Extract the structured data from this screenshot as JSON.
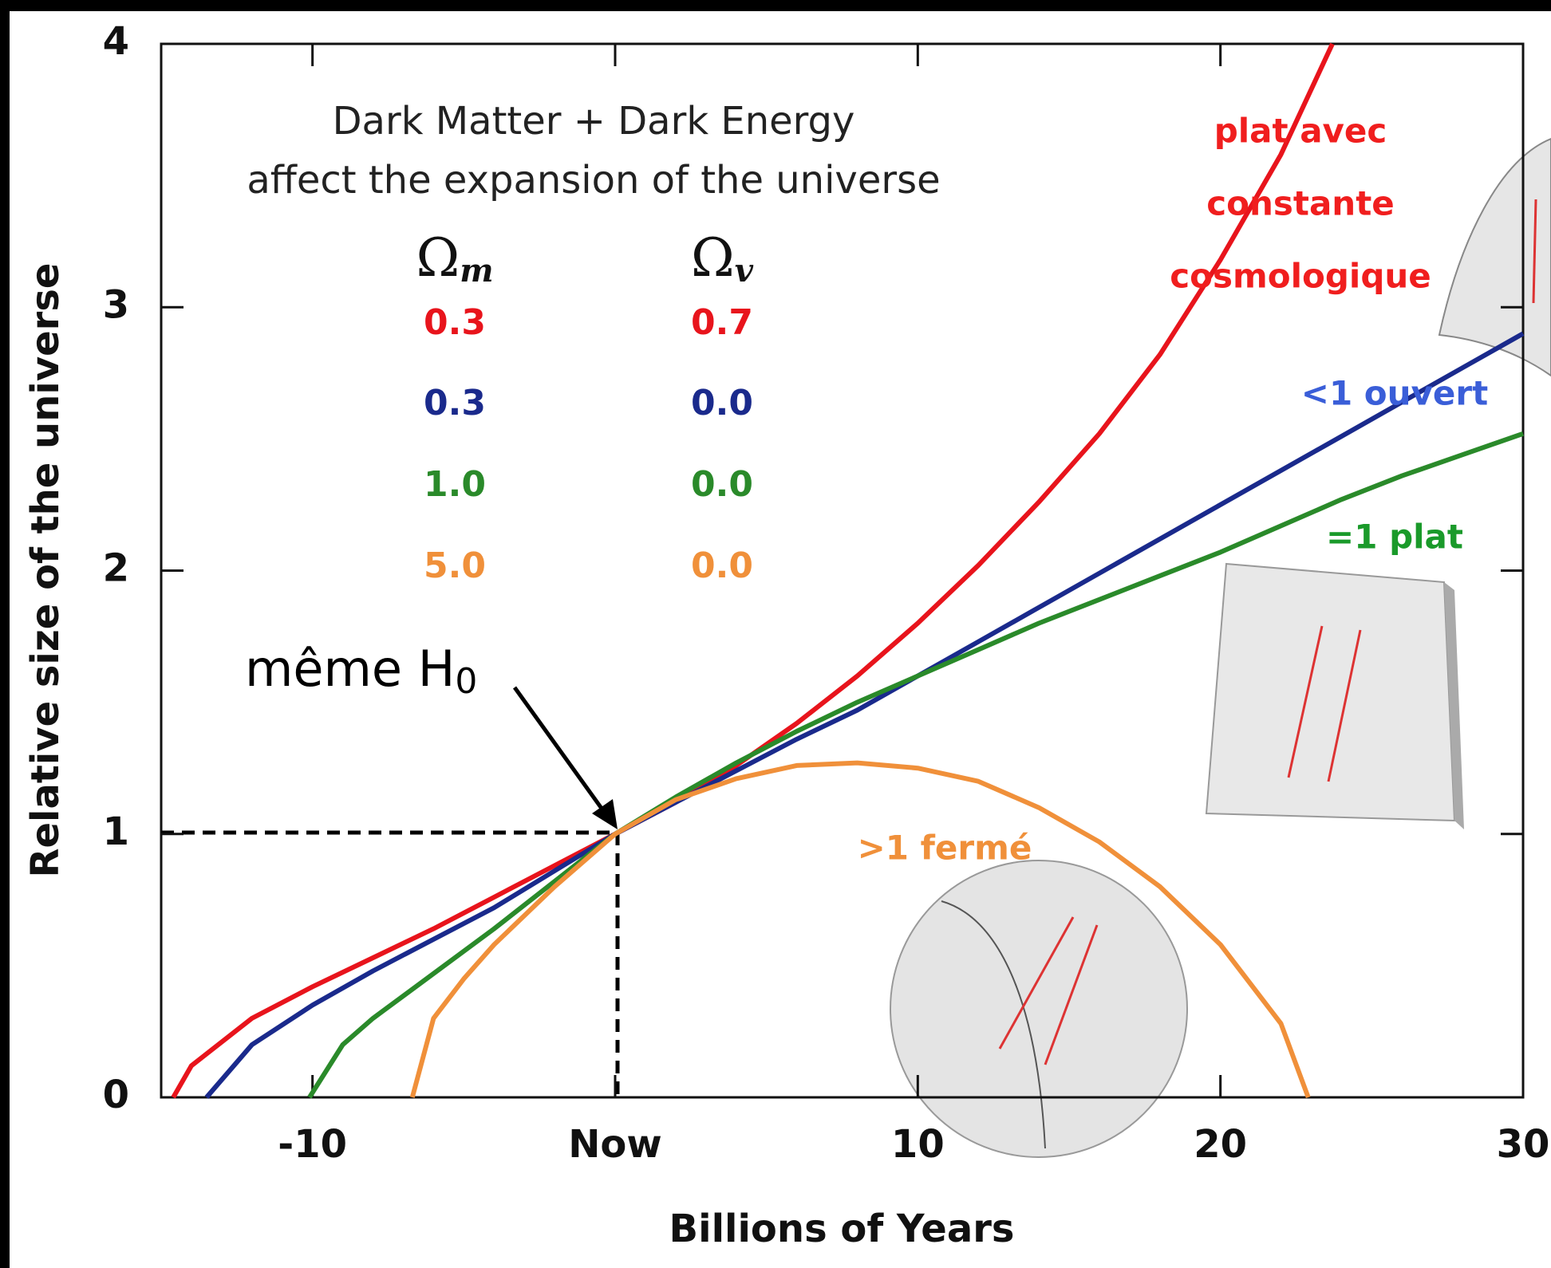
{
  "chart_data": {
    "type": "line",
    "title": [
      "Dark Matter + Dark Energy",
      "affect the expansion of the universe"
    ],
    "x_label": "Billions of Years",
    "y_label": "Relative size of the universe",
    "xlim": [
      -15,
      30
    ],
    "ylim": [
      0,
      4
    ],
    "xticks": [
      -10,
      {
        "value": 0,
        "label": "Now"
      },
      10,
      20,
      30
    ],
    "yticks": [
      0,
      1,
      2,
      3,
      4
    ],
    "table_headers": [
      {
        "symbol": "Ω",
        "subscript": "m"
      },
      {
        "symbol": "Ω",
        "subscript": "v"
      }
    ],
    "pointer": {
      "text": "même H",
      "subscript": "0"
    },
    "series": [
      {
        "color": "#e8141c",
        "label_color": "#f01e1e",
        "omega_m": {
          "value": 0.3,
          "label": "0.3"
        },
        "omega_v": {
          "value": 0.7,
          "label": "0.7"
        },
        "annotation": [
          "plat avec",
          "constante",
          "cosmologique"
        ],
        "x": [
          -14.6,
          -14,
          -12,
          -10,
          -8,
          -6,
          -4,
          -2,
          0,
          2,
          4,
          6,
          8,
          10,
          12,
          14,
          16,
          18,
          20,
          22,
          23.7
        ],
        "values": [
          0,
          0.12,
          0.3,
          0.42,
          0.53,
          0.64,
          0.76,
          0.88,
          1.0,
          1.12,
          1.26,
          1.42,
          1.6,
          1.8,
          2.02,
          2.26,
          2.52,
          2.82,
          3.18,
          3.58,
          4.0
        ]
      },
      {
        "color": "#1a2a8c",
        "label_color": "#3a5ed8",
        "omega_m": {
          "value": 0.3,
          "label": "0.3"
        },
        "omega_v": {
          "value": 0,
          "label": "0.0"
        },
        "annotation": [
          "<1 ouvert"
        ],
        "x": [
          -13.5,
          -12,
          -10,
          -8,
          -6,
          -4,
          -2,
          0,
          2,
          4,
          6,
          8,
          10,
          12,
          14,
          16,
          18,
          20,
          22,
          24,
          26,
          28,
          30
        ],
        "values": [
          0,
          0.2,
          0.35,
          0.48,
          0.6,
          0.72,
          0.86,
          1.0,
          1.12,
          1.24,
          1.36,
          1.47,
          1.6,
          1.73,
          1.86,
          1.99,
          2.12,
          2.25,
          2.38,
          2.51,
          2.64,
          2.77,
          2.9
        ]
      },
      {
        "color": "#2a8a2a",
        "label_color": "#1a9a2a",
        "omega_m": {
          "value": 1,
          "label": "1.0"
        },
        "omega_v": {
          "value": 0,
          "label": "0.0"
        },
        "annotation": [
          "=1 plat"
        ],
        "x": [
          -10.1,
          -9,
          -8,
          -6,
          -4,
          -2,
          0,
          2,
          4,
          6,
          8,
          10,
          12,
          14,
          16,
          18,
          20,
          22,
          24,
          26,
          28,
          30
        ],
        "values": [
          0,
          0.2,
          0.3,
          0.47,
          0.64,
          0.82,
          1.0,
          1.14,
          1.27,
          1.39,
          1.5,
          1.6,
          1.7,
          1.8,
          1.89,
          1.98,
          2.07,
          2.17,
          2.27,
          2.36,
          2.44,
          2.52
        ]
      },
      {
        "color": "#f0903a",
        "label_color": "#f0903a",
        "omega_m": {
          "value": 5,
          "label": "5.0"
        },
        "omega_v": {
          "value": 0,
          "label": "0.0"
        },
        "annotation": [
          ">1 fermé"
        ],
        "x": [
          -6.7,
          -6,
          -5,
          -4,
          -2,
          0,
          2,
          4,
          6,
          8,
          10,
          12,
          14,
          16,
          18,
          20,
          22,
          22.9
        ],
        "values": [
          0,
          0.3,
          0.45,
          0.58,
          0.8,
          1.0,
          1.13,
          1.21,
          1.26,
          1.27,
          1.25,
          1.2,
          1.1,
          0.97,
          0.8,
          0.58,
          0.28,
          0
        ]
      }
    ]
  }
}
